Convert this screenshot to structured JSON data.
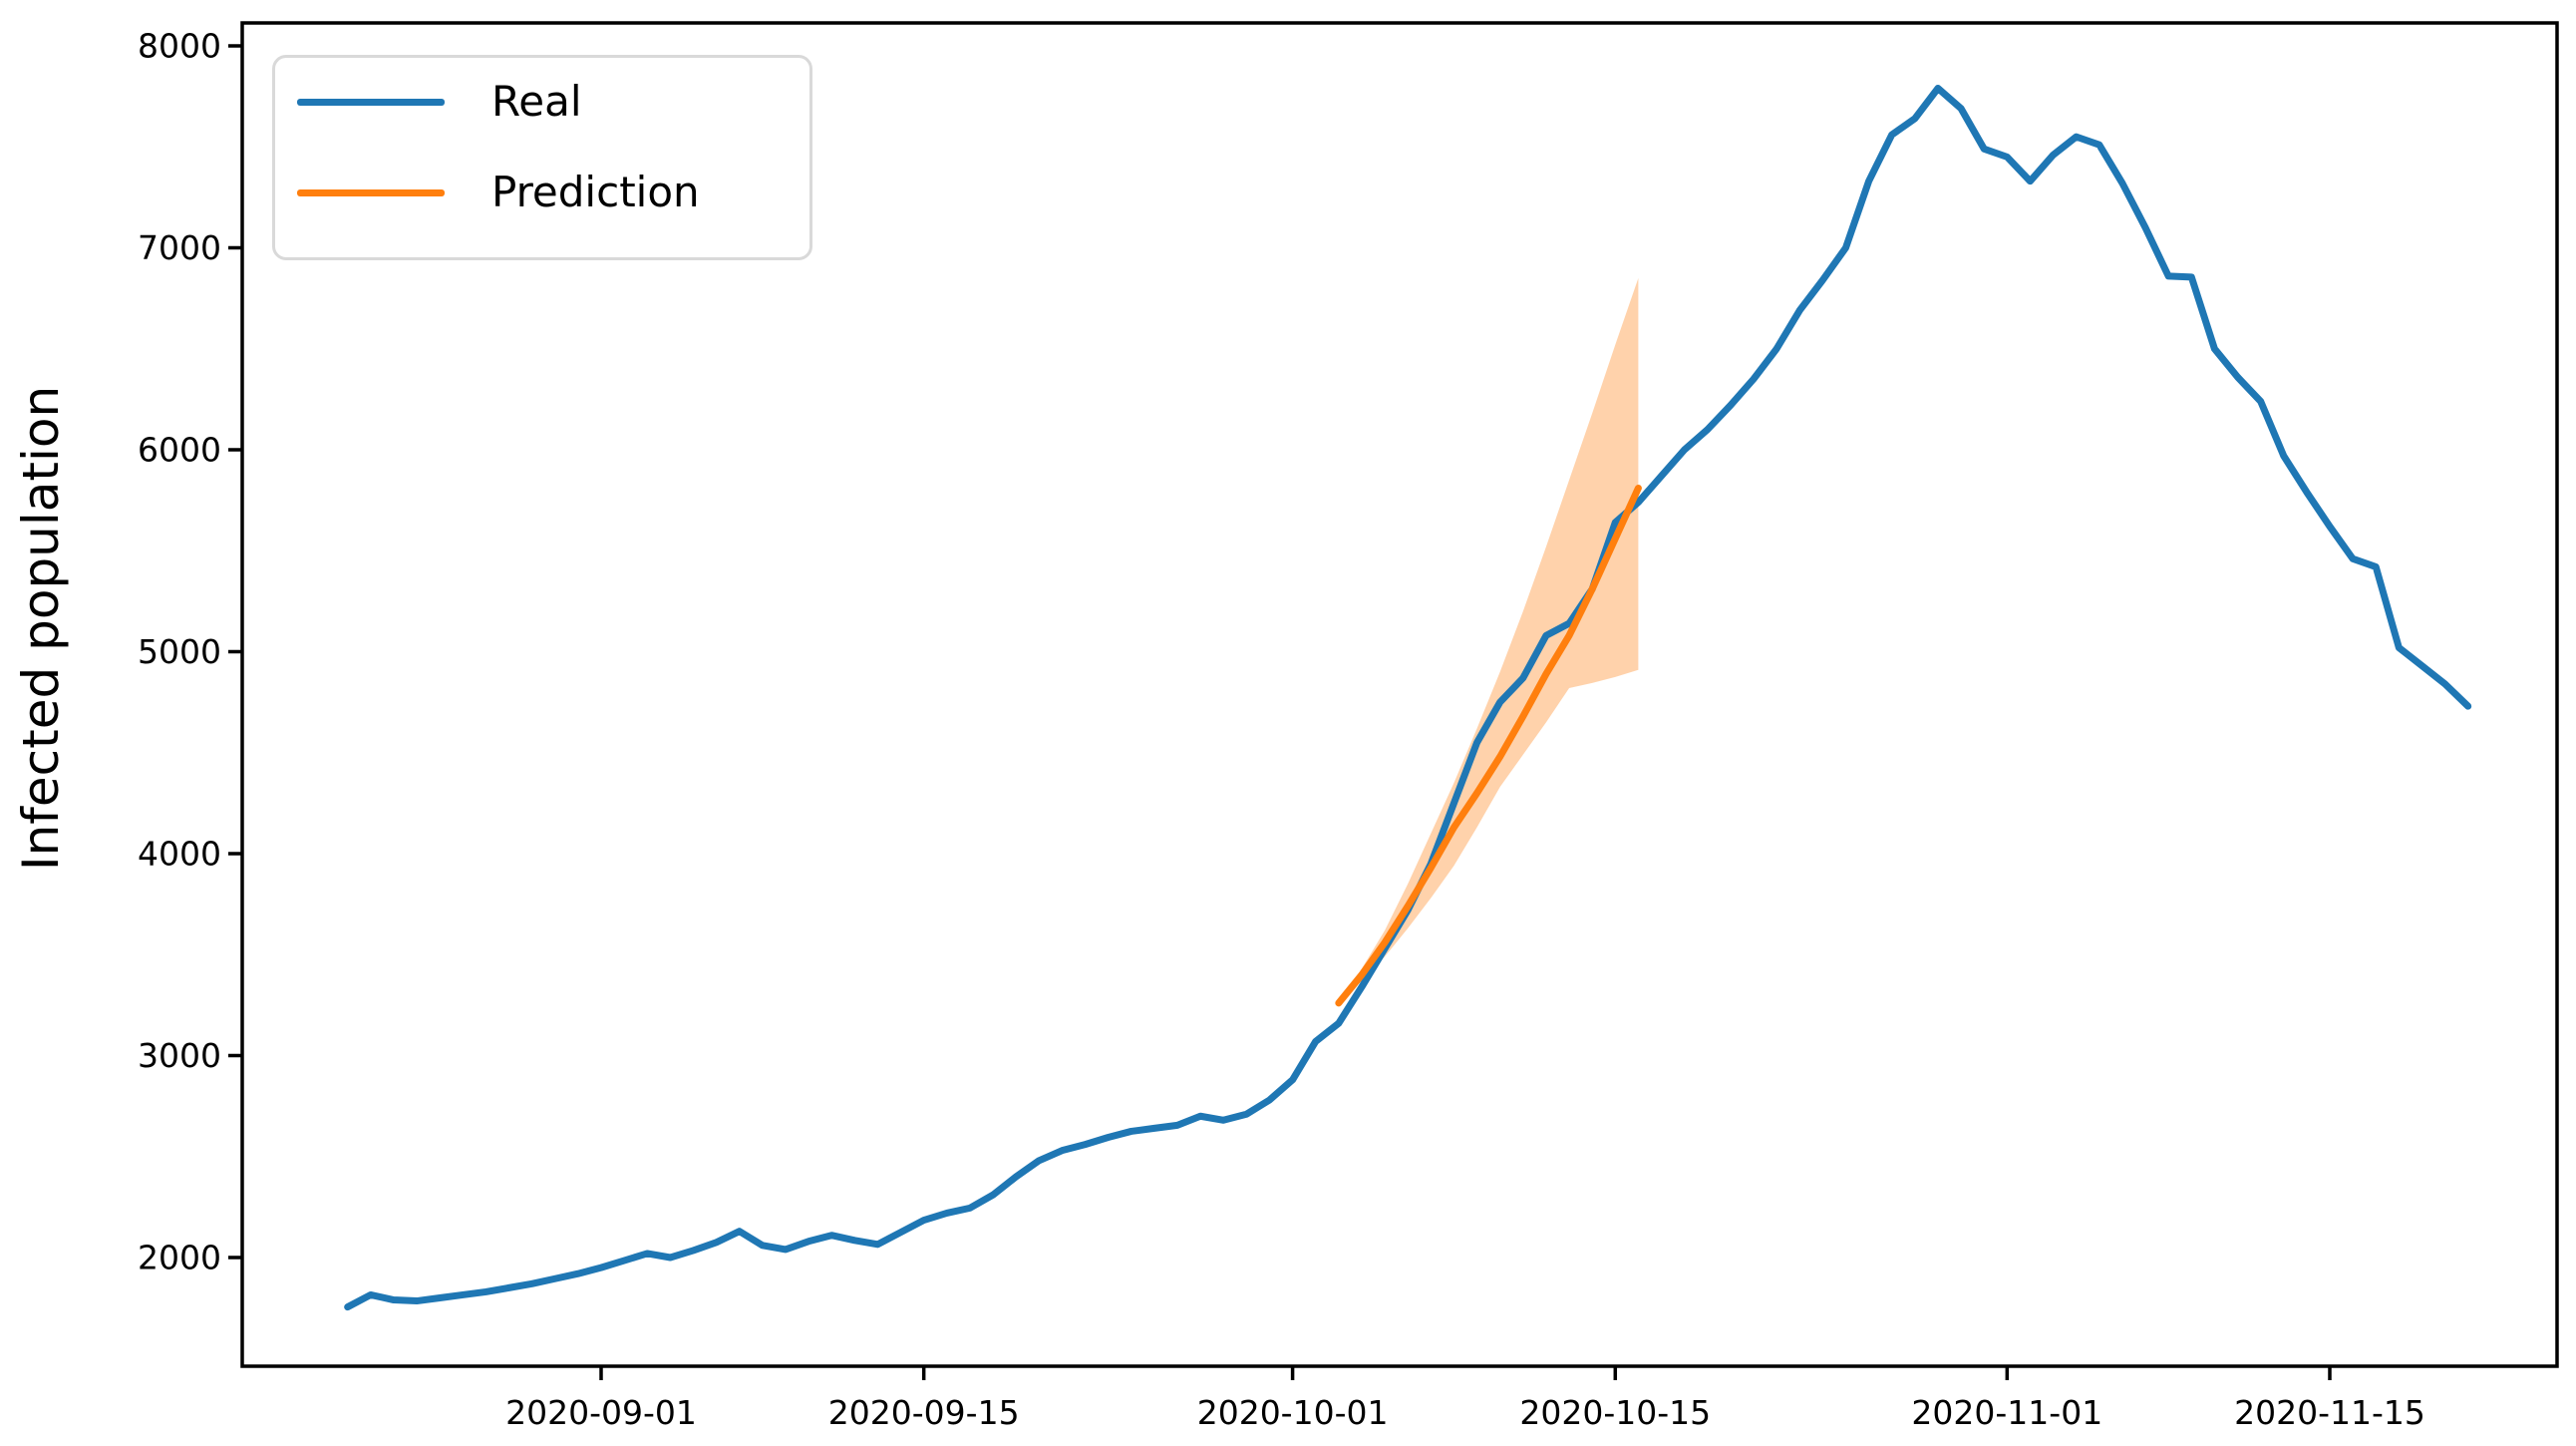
{
  "figure": {
    "background": "#ffffff"
  },
  "legend": {
    "position": "upper left",
    "items": [
      {
        "label": "Real",
        "color": "#1f77b4"
      },
      {
        "label": "Prediction",
        "color": "#ff7f0e"
      }
    ]
  },
  "axes": {
    "ylabel": "Infected population",
    "x_ticks": [
      "2020-09-01",
      "2020-09-15",
      "2020-10-01",
      "2020-10-15",
      "2020-11-01",
      "2020-11-15"
    ],
    "y_ticks": [
      2000,
      3000,
      4000,
      5000,
      6000,
      7000,
      8000
    ]
  },
  "chart_data": {
    "type": "line",
    "title": "",
    "xlabel": "",
    "ylabel": "Infected population",
    "grid": false,
    "legend_position": "upper left",
    "epoch": "2020-09-01",
    "xlim": [
      "2020-08-16",
      "2020-11-25"
    ],
    "ylim": [
      1460,
      8115
    ],
    "x_tick_labels": [
      "2020-09-01",
      "2020-09-15",
      "2020-10-01",
      "2020-10-15",
      "2020-11-01",
      "2020-11-15"
    ],
    "y_tick_labels": [
      2000,
      3000,
      4000,
      5000,
      6000,
      7000,
      8000
    ],
    "band_color": "#ff7f0e",
    "band_opacity": 0.35,
    "series": [
      {
        "name": "Real",
        "color": "#1f77b4",
        "dates": [
          "2020-08-21",
          "2020-08-22",
          "2020-08-23",
          "2020-08-24",
          "2020-08-25",
          "2020-08-26",
          "2020-08-27",
          "2020-08-28",
          "2020-08-29",
          "2020-08-30",
          "2020-08-31",
          "2020-09-01",
          "2020-09-02",
          "2020-09-03",
          "2020-09-04",
          "2020-09-05",
          "2020-09-06",
          "2020-09-07",
          "2020-09-08",
          "2020-09-09",
          "2020-09-10",
          "2020-09-11",
          "2020-09-12",
          "2020-09-13",
          "2020-09-14",
          "2020-09-15",
          "2020-09-16",
          "2020-09-17",
          "2020-09-18",
          "2020-09-19",
          "2020-09-20",
          "2020-09-21",
          "2020-09-22",
          "2020-09-23",
          "2020-09-24",
          "2020-09-25",
          "2020-09-26",
          "2020-09-27",
          "2020-09-28",
          "2020-09-29",
          "2020-09-30",
          "2020-10-01",
          "2020-10-02",
          "2020-10-03",
          "2020-10-04",
          "2020-10-05",
          "2020-10-06",
          "2020-10-07",
          "2020-10-08",
          "2020-10-09",
          "2020-10-10",
          "2020-10-11",
          "2020-10-12",
          "2020-10-13",
          "2020-10-14",
          "2020-10-15",
          "2020-10-16",
          "2020-10-17",
          "2020-10-18",
          "2020-10-19",
          "2020-10-20",
          "2020-10-21",
          "2020-10-22",
          "2020-10-23",
          "2020-10-24",
          "2020-10-25",
          "2020-10-26",
          "2020-10-27",
          "2020-10-28",
          "2020-10-29",
          "2020-10-30",
          "2020-10-31",
          "2020-11-01",
          "2020-11-02",
          "2020-11-03",
          "2020-11-04",
          "2020-11-05",
          "2020-11-06",
          "2020-11-07",
          "2020-11-08",
          "2020-11-09",
          "2020-11-10",
          "2020-11-11",
          "2020-11-12",
          "2020-11-13",
          "2020-11-14",
          "2020-11-15",
          "2020-11-16",
          "2020-11-17",
          "2020-11-18",
          "2020-11-19",
          "2020-11-20",
          "2020-11-21"
        ],
        "values": [
          1755,
          1815,
          1790,
          1785,
          1800,
          1815,
          1830,
          1850,
          1870,
          1895,
          1920,
          1950,
          1985,
          2020,
          2000,
          2035,
          2075,
          2130,
          2060,
          2040,
          2080,
          2110,
          2085,
          2065,
          2125,
          2185,
          2220,
          2245,
          2310,
          2400,
          2480,
          2530,
          2560,
          2595,
          2625,
          2640,
          2655,
          2700,
          2680,
          2710,
          2780,
          2880,
          3070,
          3160,
          3340,
          3530,
          3720,
          3950,
          4250,
          4550,
          4750,
          4870,
          5080,
          5140,
          5310,
          5640,
          5740,
          5870,
          6000,
          6100,
          6220,
          6350,
          6500,
          6690,
          6840,
          7000,
          7330,
          7560,
          7640,
          7790,
          7690,
          7490,
          7450,
          7330,
          7460,
          7550,
          7510,
          7320,
          7100,
          6860,
          6855,
          6500,
          6360,
          6240,
          5970,
          5790,
          5620,
          5460,
          5420,
          5020,
          4930,
          4840,
          4730
        ]
      },
      {
        "name": "Prediction",
        "color": "#ff7f0e",
        "dates": [
          "2020-10-03",
          "2020-10-04",
          "2020-10-05",
          "2020-10-06",
          "2020-10-07",
          "2020-10-08",
          "2020-10-09",
          "2020-10-10",
          "2020-10-11",
          "2020-10-12",
          "2020-10-13",
          "2020-10-14",
          "2020-10-15",
          "2020-10-16"
        ],
        "values": [
          3260,
          3400,
          3560,
          3740,
          3930,
          4130,
          4300,
          4480,
          4680,
          4890,
          5080,
          5310,
          5560,
          5810
        ]
      },
      {
        "name": "Prediction confidence band",
        "type": "band",
        "dates": [
          "2020-10-03",
          "2020-10-04",
          "2020-10-05",
          "2020-10-06",
          "2020-10-07",
          "2020-10-08",
          "2020-10-09",
          "2020-10-10",
          "2020-10-11",
          "2020-10-12",
          "2020-10-13",
          "2020-10-14",
          "2020-10-15",
          "2020-10-16"
        ],
        "upper": [
          3260,
          3430,
          3620,
          3850,
          4100,
          4350,
          4620,
          4900,
          5200,
          5520,
          5850,
          6180,
          6520,
          6850
        ],
        "lower": [
          3260,
          3370,
          3490,
          3630,
          3780,
          3940,
          4130,
          4330,
          4490,
          4650,
          4820,
          4845,
          4875,
          4910
        ]
      }
    ]
  }
}
